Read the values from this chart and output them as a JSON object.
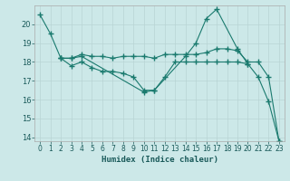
{
  "xlabel": "Humidex (Indice chaleur)",
  "bg_color": "#cce8e8",
  "grid_color": "#b8d4d4",
  "line_color": "#1a7a6e",
  "xlim": [
    -0.5,
    23.5
  ],
  "ylim": [
    13.8,
    21.0
  ],
  "yticks": [
    14,
    15,
    16,
    17,
    18,
    19,
    20
  ],
  "xticks": [
    0,
    1,
    2,
    3,
    4,
    5,
    6,
    7,
    8,
    9,
    10,
    11,
    12,
    13,
    14,
    15,
    16,
    17,
    18,
    19,
    20,
    21,
    22,
    23
  ],
  "series": [
    {
      "x": [
        0,
        1,
        2,
        3,
        4,
        10,
        11,
        14,
        15,
        16,
        17,
        19,
        20,
        21,
        22,
        23
      ],
      "y": [
        20.5,
        19.5,
        18.2,
        18.2,
        18.3,
        16.4,
        16.5,
        18.3,
        19.0,
        20.3,
        20.8,
        18.7,
        17.9,
        17.2,
        15.9,
        13.8
      ]
    },
    {
      "x": [
        2,
        3,
        4,
        5,
        6,
        7,
        8,
        9,
        10,
        11,
        12,
        13,
        14,
        15,
        16,
        17,
        18,
        19,
        20,
        21,
        22,
        23
      ],
      "y": [
        18.2,
        18.2,
        18.4,
        18.3,
        18.3,
        18.2,
        18.3,
        18.3,
        18.3,
        18.2,
        18.4,
        18.4,
        18.4,
        18.4,
        18.5,
        18.7,
        18.7,
        18.6,
        18.0,
        18.0,
        17.2,
        13.8
      ]
    },
    {
      "x": [
        2,
        3,
        4,
        5,
        6,
        7,
        8,
        9,
        10,
        11,
        12,
        13,
        14,
        15,
        16,
        17,
        18,
        19,
        20
      ],
      "y": [
        18.2,
        17.8,
        18.0,
        17.7,
        17.5,
        17.5,
        17.4,
        17.2,
        16.5,
        16.5,
        17.2,
        18.0,
        18.0,
        18.0,
        18.0,
        18.0,
        18.0,
        18.0,
        17.9
      ]
    }
  ]
}
